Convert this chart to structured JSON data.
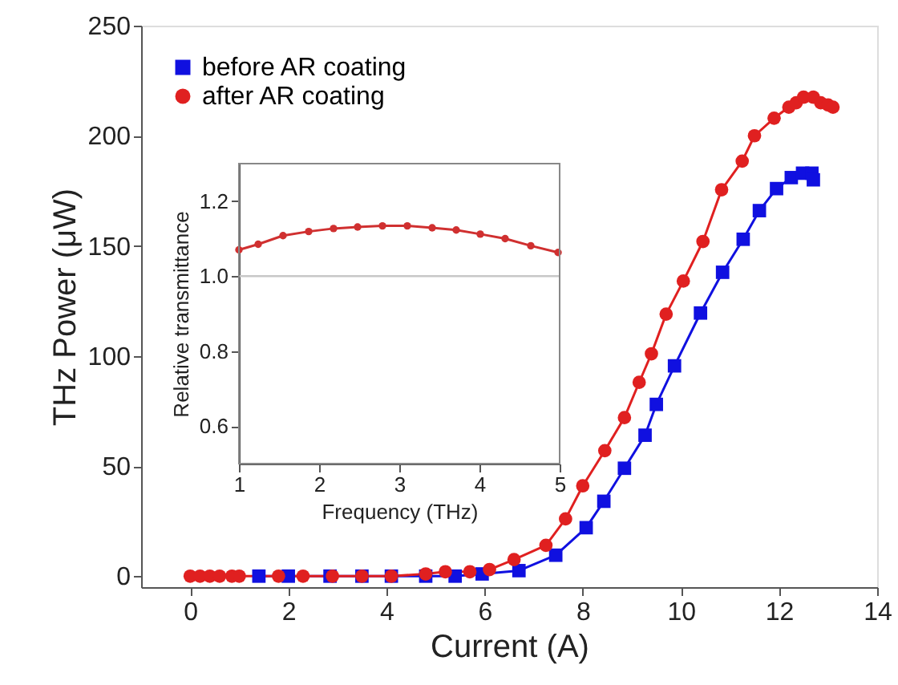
{
  "chart_data": [
    {
      "type": "line",
      "xlabel": "Current (A)",
      "ylabel": "THz Power (μW)",
      "xlim": [
        -1,
        14
      ],
      "ylim": [
        -5,
        250
      ],
      "xticks": [
        0,
        2,
        4,
        6,
        8,
        10,
        12,
        14
      ],
      "yticks": [
        0,
        50,
        100,
        150,
        200,
        250
      ],
      "grid": false,
      "legend": "top left",
      "line_style": "solid",
      "series": [
        {
          "name": "before AR coating",
          "color": "#1010e0",
          "marker": "square",
          "x": [
            1.4,
            2.0,
            2.85,
            3.5,
            4.1,
            4.8,
            5.4,
            5.95,
            6.7,
            7.45,
            8.07,
            8.43,
            8.85,
            9.27,
            9.5,
            9.87,
            10.4,
            10.85,
            11.27,
            11.6,
            11.95,
            12.25,
            12.48,
            12.67,
            12.7
          ],
          "values": [
            0,
            0,
            0,
            0,
            0,
            0,
            0,
            1,
            2.5,
            9.5,
            22,
            34,
            49,
            64,
            78,
            95.5,
            119.5,
            138,
            153,
            166,
            176,
            181,
            183,
            183,
            180
          ]
        },
        {
          "name": "after AR coating",
          "color": "#e02020",
          "marker": "circle",
          "x": [
            0,
            0.2,
            0.4,
            0.6,
            0.85,
            1.0,
            1.8,
            2.3,
            2.9,
            3.5,
            4.1,
            4.8,
            5.2,
            5.7,
            6.1,
            6.6,
            7.25,
            7.65,
            8.0,
            8.45,
            8.85,
            9.15,
            9.4,
            9.7,
            10.05,
            10.45,
            10.83,
            11.25,
            11.5,
            11.9,
            12.2,
            12.35,
            12.5,
            12.7,
            12.85,
            13.0,
            13.1
          ],
          "values": [
            0,
            0,
            0,
            0,
            0,
            0,
            0,
            0,
            0,
            0,
            0,
            1,
            2,
            2,
            3,
            7.5,
            14,
            26,
            41,
            57,
            72,
            88,
            101,
            119,
            134,
            152,
            175.5,
            188.5,
            200,
            208,
            213,
            215,
            217.5,
            217.5,
            215,
            214,
            213
          ]
        }
      ]
    },
    {
      "type": "line",
      "xlabel": "Frequency (THz)",
      "ylabel": "Relative transmittance",
      "xlim": [
        1,
        5
      ],
      "ylim": [
        0.5,
        1.3
      ],
      "xticks": [
        1,
        2,
        3,
        4,
        5
      ],
      "yticks": [
        {
          "value": 0.6,
          "label": "0.6"
        },
        {
          "value": 0.8,
          "label": "0.8"
        },
        {
          "value": 1.0,
          "label": "1.0"
        },
        {
          "value": 1.2,
          "label": "1.2"
        }
      ],
      "grid": false,
      "line_style": "solid",
      "ref_lines": [
        {
          "axis": "y",
          "value": 1.0,
          "color": "#c8c8c8"
        }
      ],
      "series": [
        {
          "color": "#d03030",
          "marker": "circle",
          "x": [
            1.0,
            1.24,
            1.55,
            1.87,
            2.18,
            2.48,
            2.79,
            3.1,
            3.41,
            3.71,
            4.01,
            4.32,
            4.64,
            4.98
          ],
          "values": [
            1.07,
            1.085,
            1.108,
            1.119,
            1.127,
            1.131,
            1.134,
            1.134,
            1.129,
            1.123,
            1.112,
            1.1,
            1.081,
            1.063
          ]
        }
      ]
    }
  ]
}
